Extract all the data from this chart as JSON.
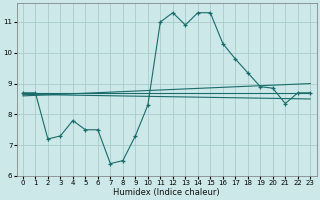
{
  "title": "",
  "xlabel": "Humidex (Indice chaleur)",
  "background_color": "#cce8e8",
  "grid_color": "#aacccc",
  "line_color": "#1a6b6b",
  "xlim": [
    -0.5,
    23.5
  ],
  "ylim": [
    6,
    11.6
  ],
  "yticks": [
    6,
    7,
    8,
    9,
    10,
    11
  ],
  "xticks": [
    0,
    1,
    2,
    3,
    4,
    5,
    6,
    7,
    8,
    9,
    10,
    11,
    12,
    13,
    14,
    15,
    16,
    17,
    18,
    19,
    20,
    21,
    22,
    23
  ],
  "line1_x": [
    0,
    1,
    2,
    3,
    4,
    5,
    6,
    7,
    8,
    9,
    10,
    11,
    12,
    13,
    14,
    15,
    16,
    17,
    18,
    19,
    20,
    21,
    22,
    23
  ],
  "line1_y": [
    8.7,
    8.7,
    7.2,
    7.3,
    7.8,
    7.5,
    7.5,
    6.4,
    6.5,
    7.3,
    8.3,
    11.0,
    11.3,
    10.9,
    11.3,
    11.3,
    10.3,
    9.8,
    9.35,
    8.9,
    8.85,
    8.35,
    8.7,
    8.7
  ],
  "line2_x": [
    0,
    23
  ],
  "line2_y": [
    8.7,
    8.7
  ],
  "line3_x": [
    0,
    23
  ],
  "line3_y": [
    8.65,
    8.5
  ],
  "line4_x": [
    0,
    23
  ],
  "line4_y": [
    8.6,
    9.0
  ]
}
